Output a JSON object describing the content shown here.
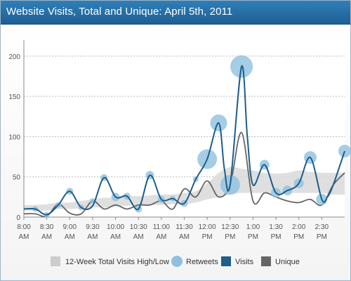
{
  "title": "Website Visits, Total and Unique: April 5th, 2011",
  "colors": {
    "visits": "#1c5e8c",
    "unique": "#666666",
    "retweets": "#8fc0de",
    "band": "#d9d9d9"
  },
  "chart_data": {
    "type": "line",
    "title": "Website Visits, Total and Unique: April 5th, 2011",
    "ylim": [
      0,
      220
    ],
    "yticks": [
      0,
      50,
      100,
      150,
      200
    ],
    "xlim": [
      0,
      28
    ],
    "xticks": [
      {
        "x": 0,
        "l1": "8:00",
        "l2": "AM"
      },
      {
        "x": 2,
        "l1": "8:30",
        "l2": "AM"
      },
      {
        "x": 4,
        "l1": "9:00",
        "l2": "AM"
      },
      {
        "x": 6,
        "l1": "9:30",
        "l2": "AM"
      },
      {
        "x": 8,
        "l1": "10:00",
        "l2": "AM"
      },
      {
        "x": 10,
        "l1": "10:30",
        "l2": "AM"
      },
      {
        "x": 12,
        "l1": "11:00",
        "l2": "AM"
      },
      {
        "x": 14,
        "l1": "11:30",
        "l2": "AM"
      },
      {
        "x": 16,
        "l1": "12:00",
        "l2": "PM"
      },
      {
        "x": 18,
        "l1": "12:30",
        "l2": "PM"
      },
      {
        "x": 20,
        "l1": "1:00",
        "l2": "PM"
      },
      {
        "x": 22,
        "l1": "1:30",
        "l2": "PM"
      },
      {
        "x": 24,
        "l1": "2:00",
        "l2": "PM"
      },
      {
        "x": 26,
        "l1": "2:30",
        "l2": "PM"
      }
    ],
    "band": {
      "name": "12-Week Total Visits High/Low",
      "x": [
        0,
        1,
        2,
        3,
        4,
        5,
        6,
        7,
        8,
        9,
        10,
        11,
        12,
        13,
        14,
        15,
        16,
        17,
        18,
        19,
        20,
        21,
        22,
        23,
        24,
        25,
        26,
        27,
        28
      ],
      "high": [
        15,
        15,
        16,
        18,
        18,
        20,
        22,
        24,
        24,
        26,
        26,
        27,
        28,
        28,
        30,
        32,
        42,
        55,
        62,
        60,
        58,
        55,
        54,
        55,
        58,
        56,
        55,
        55,
        55
      ],
      "low": [
        8,
        8,
        8,
        10,
        10,
        11,
        12,
        12,
        13,
        14,
        15,
        15,
        15,
        16,
        16,
        18,
        22,
        25,
        28,
        30,
        30,
        30,
        30,
        30,
        30,
        30,
        30,
        28,
        28
      ]
    },
    "series": [
      {
        "name": "Visits",
        "x": [
          0,
          1,
          2,
          3,
          4,
          5,
          6,
          7,
          8,
          9,
          10,
          11,
          12,
          13,
          14,
          15,
          16,
          17,
          17.5,
          18,
          19,
          19.5,
          20,
          21,
          22,
          23,
          24,
          25,
          26,
          26.5,
          27,
          28
        ],
        "y": [
          10,
          10,
          3,
          15,
          32,
          12,
          14,
          49,
          25,
          26,
          10,
          52,
          22,
          23,
          17,
          47,
          72,
          117,
          60,
          40,
          187,
          100,
          40,
          65,
          30,
          33,
          42,
          74,
          22,
          25,
          40,
          82
        ]
      },
      {
        "name": "Unique",
        "x": [
          0,
          1,
          2,
          3,
          4,
          5,
          6,
          7,
          8,
          9,
          10,
          11,
          12,
          13,
          14,
          15,
          16,
          17,
          18,
          19,
          20,
          21,
          22,
          23,
          24,
          25,
          26,
          27,
          28
        ],
        "y": [
          4,
          4,
          1,
          16,
          5,
          4,
          20,
          10,
          15,
          10,
          15,
          15,
          20,
          10,
          35,
          25,
          45,
          25,
          40,
          105,
          20,
          30,
          25,
          20,
          18,
          22,
          15,
          40,
          55
        ]
      }
    ],
    "retweets": {
      "name": "Retweets",
      "points": [
        {
          "x": 1,
          "y": 10,
          "r": 4
        },
        {
          "x": 2,
          "y": 3,
          "r": 4
        },
        {
          "x": 3,
          "y": 15,
          "r": 4
        },
        {
          "x": 4,
          "y": 32,
          "r": 5
        },
        {
          "x": 5,
          "y": 12,
          "r": 4
        },
        {
          "x": 6,
          "y": 20,
          "r": 4
        },
        {
          "x": 7,
          "y": 49,
          "r": 5
        },
        {
          "x": 8,
          "y": 25,
          "r": 6
        },
        {
          "x": 9,
          "y": 26,
          "r": 5
        },
        {
          "x": 10,
          "y": 10,
          "r": 5
        },
        {
          "x": 11,
          "y": 52,
          "r": 6
        },
        {
          "x": 12,
          "y": 22,
          "r": 5
        },
        {
          "x": 13,
          "y": 23,
          "r": 4
        },
        {
          "x": 14,
          "y": 17,
          "r": 5
        },
        {
          "x": 15,
          "y": 47,
          "r": 4
        },
        {
          "x": 16,
          "y": 72,
          "r": 14
        },
        {
          "x": 17,
          "y": 117,
          "r": 12
        },
        {
          "x": 18,
          "y": 40,
          "r": 14
        },
        {
          "x": 19,
          "y": 187,
          "r": 16
        },
        {
          "x": 21,
          "y": 65,
          "r": 7
        },
        {
          "x": 22,
          "y": 30,
          "r": 7
        },
        {
          "x": 23,
          "y": 33,
          "r": 7
        },
        {
          "x": 24,
          "y": 42,
          "r": 7
        },
        {
          "x": 25,
          "y": 74,
          "r": 9
        },
        {
          "x": 26,
          "y": 22,
          "r": 8
        },
        {
          "x": 28,
          "y": 82,
          "r": 9
        }
      ]
    },
    "legend": [
      "12-Week Total Visits High/Low",
      "Retweets",
      "Visits",
      "Unique"
    ],
    "legend_position": "bottom",
    "grid": true
  }
}
